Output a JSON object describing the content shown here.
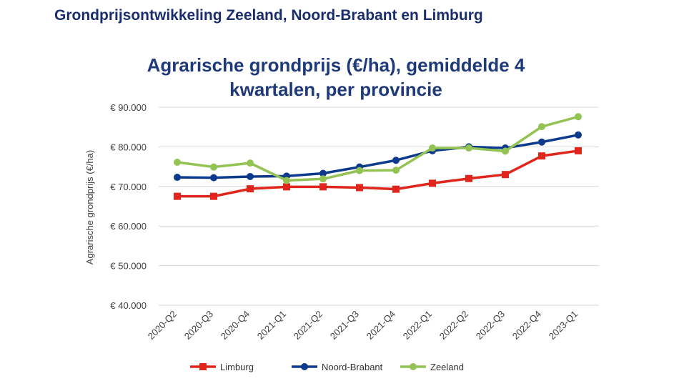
{
  "page": {
    "heading": "Grondprijsontwikkeling Zeeland, Noord-Brabant en Limburg"
  },
  "chart_data": {
    "type": "line",
    "title_line1": "Agrarische grondprijs (€/ha), gemiddelde 4",
    "title_line2": "kwartalen, per provincie",
    "ylabel": "Agrarische grondprijs (€/ha)",
    "xlabel": "",
    "ylim": [
      40000,
      90000
    ],
    "yticks": [
      {
        "value": 40000,
        "label": "€ 40.000"
      },
      {
        "value": 50000,
        "label": "€ 50.000"
      },
      {
        "value": 60000,
        "label": "€ 60.000"
      },
      {
        "value": 70000,
        "label": "€ 70.000"
      },
      {
        "value": 80000,
        "label": "€ 80.000"
      },
      {
        "value": 90000,
        "label": "€ 90.000"
      }
    ],
    "grid": true,
    "legend_position": "bottom",
    "categories": [
      "2020-Q2",
      "2020-Q3",
      "2020-Q4",
      "2021-Q1",
      "2021-Q2",
      "2021-Q3",
      "2021-Q4",
      "2022-Q1",
      "2022-Q2",
      "2022-Q3",
      "2022-Q4",
      "2023-Q1"
    ],
    "series": [
      {
        "name": "Limburg",
        "color": "#e0261c",
        "marker": "square",
        "values": [
          67500,
          67500,
          69400,
          69900,
          69900,
          69700,
          69300,
          70800,
          72000,
          73000,
          77700,
          79000
        ]
      },
      {
        "name": "Noord-Brabant",
        "color": "#0d3a8c",
        "marker": "circle",
        "values": [
          72300,
          72200,
          72500,
          72600,
          73300,
          74900,
          76600,
          79000,
          80000,
          79700,
          81200,
          83000
        ]
      },
      {
        "name": "Zeeland",
        "color": "#92c353",
        "marker": "circle",
        "values": [
          76100,
          74900,
          75900,
          71500,
          71900,
          74000,
          74100,
          79700,
          79700,
          78900,
          85100,
          87600
        ]
      }
    ]
  }
}
